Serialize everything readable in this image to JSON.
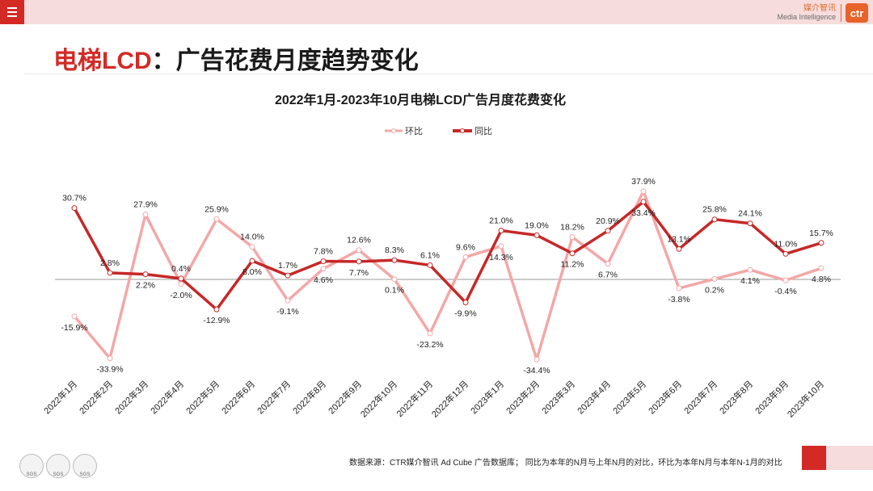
{
  "header": {
    "menu_icon": "hamburger-menu-icon",
    "logo_cn": "媒介智讯",
    "logo_en": "Media Intelligence",
    "logo_badge": "ctr"
  },
  "page_title": {
    "part1": "电梯LCD",
    "part2": "：广告花费月度趋势变化"
  },
  "footer": {
    "source": "数据来源：CTR媒介智讯 Ad Cube 广告数据库； 同比为本年的N月与上年N月的对比，环比为本年N月与本年N-1月的对比",
    "cert_label": "SGS"
  },
  "colors": {
    "yoy": "#c62828",
    "mom": "#f4a7a7",
    "accent": "#d42a25",
    "pink": "#f6dcdc"
  },
  "chart_data": {
    "type": "line",
    "title": "2022年1月-2023年10月电梯LCD广告月度花费变化",
    "categories": [
      "2022年1月",
      "2022年2月",
      "2022年3月",
      "2022年4月",
      "2022年5月",
      "2022年6月",
      "2022年7月",
      "2022年8月",
      "2022年9月",
      "2022年10月",
      "2022年11月",
      "2022年12月",
      "2023年1月",
      "2023年2月",
      "2023年3月",
      "2023年4月",
      "2023年5月",
      "2023年6月",
      "2023年7月",
      "2023年8月",
      "2023年9月",
      "2023年10月"
    ],
    "series": [
      {
        "name": "环比",
        "values": [
          -15.9,
          -33.9,
          27.9,
          -2.0,
          25.9,
          14.0,
          -9.1,
          4.6,
          12.6,
          0.1,
          -23.2,
          9.6,
          14.3,
          -34.4,
          18.2,
          6.7,
          37.9,
          -3.8,
          0.2,
          4.1,
          -0.4,
          4.8
        ]
      },
      {
        "name": "同比",
        "values": [
          30.7,
          2.8,
          2.2,
          0.4,
          -12.9,
          8.0,
          1.7,
          7.8,
          7.7,
          8.3,
          6.1,
          -9.9,
          21.0,
          19.0,
          11.2,
          20.9,
          33.4,
          13.1,
          25.8,
          24.1,
          11.0,
          15.7
        ]
      }
    ],
    "labels": {
      "环比": [
        "-15.9%",
        "-33.9%",
        "27.9%",
        "-2.0%",
        "25.9%",
        "14.0%",
        "-9.1%",
        "4.6%",
        "12.6%",
        "0.1%",
        "-23.2%",
        "9.6%",
        "14.3%",
        "-34.4%",
        "18.2%",
        "6.7%",
        "37.9%",
        "-3.8%",
        "0.2%",
        "4.1%",
        "-0.4%",
        "4.8%"
      ],
      "同比": [
        "30.7%",
        "2.8%",
        "2.2%",
        "0.4%",
        "-12.9%",
        "8.0%",
        "1.7%",
        "7.8%",
        "7.7%",
        "8.3%",
        "6.1%",
        "-9.9%",
        "21.0%",
        "19.0%",
        "11.2%",
        "20.9%",
        "33.4%",
        "13.1%",
        "25.8%",
        "24.1%",
        "11.0%",
        "15.7%"
      ]
    },
    "ylim": [
      -40,
      45
    ],
    "xlabel": "",
    "ylabel": "",
    "legend": [
      "环比",
      "同比"
    ],
    "grid": false
  }
}
